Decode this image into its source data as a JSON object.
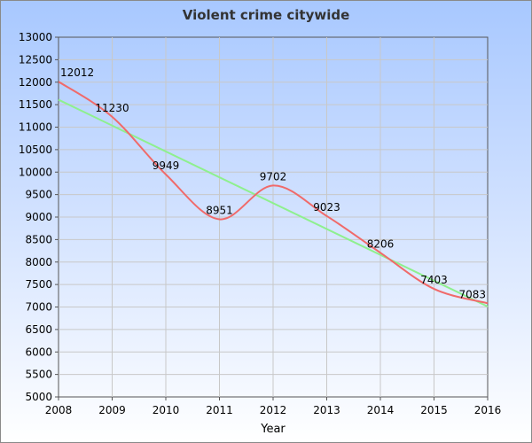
{
  "chart_data": {
    "type": "line",
    "title": "Violent crime citywide",
    "xlabel": "Year",
    "ylabel": "",
    "x": [
      2008,
      2009,
      2010,
      2011,
      2012,
      2013,
      2014,
      2015,
      2016
    ],
    "xlim": [
      2008,
      2016
    ],
    "ylim": [
      5000,
      13000
    ],
    "yticks": [
      5000,
      5500,
      6000,
      6500,
      7000,
      7500,
      8000,
      8500,
      9000,
      9500,
      10000,
      10500,
      11000,
      11500,
      12000,
      12500,
      13000
    ],
    "grid": true,
    "series": [
      {
        "values": [
          12012,
          11230,
          9949,
          8951,
          9702,
          9023,
          8206,
          7403,
          7083
        ],
        "color": "#f06a6a",
        "smooth": true,
        "data_labels": [
          "12012",
          "11230",
          "9949",
          "8951",
          "9702",
          "9023",
          "8206",
          "7403",
          "7083"
        ]
      },
      {
        "trend": true,
        "values": [
          11610,
          7010
        ],
        "x": [
          2008,
          2016
        ],
        "color": "#8ef08e"
      }
    ],
    "colors": {
      "grid": "#c8c8c8",
      "background_top": "#a8c8ff",
      "background_bottom": "#ffffff"
    }
  }
}
